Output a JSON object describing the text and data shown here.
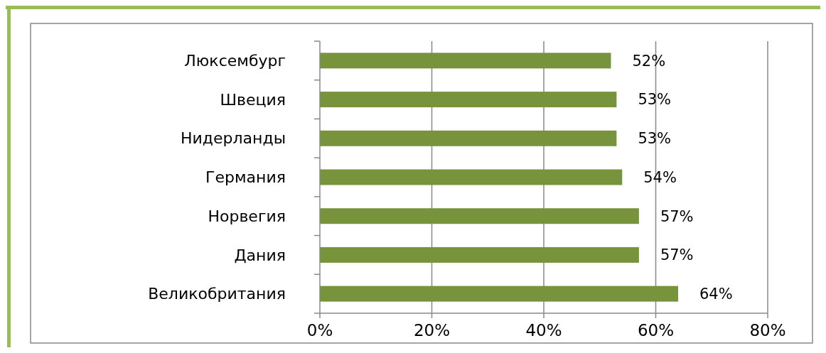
{
  "chart_data": {
    "type": "bar",
    "orientation": "horizontal",
    "categories": [
      "Люксембург",
      "Швеция",
      "Нидерланды",
      "Германия",
      "Норвегия",
      "Дания",
      "Великобритания"
    ],
    "values": [
      52,
      53,
      53,
      54,
      57,
      57,
      64
    ],
    "value_labels": [
      "52%",
      "53%",
      "53%",
      "54%",
      "57%",
      "57%",
      "64%"
    ],
    "color": "#77933c",
    "xlim": [
      0,
      80
    ],
    "xticks": [
      {
        "value": 0,
        "label": "0%"
      },
      {
        "value": 20,
        "label": "20%"
      },
      {
        "value": 40,
        "label": "40%"
      },
      {
        "value": 60,
        "label": "60%"
      },
      {
        "value": 80,
        "label": "80%"
      }
    ],
    "grid": "x"
  }
}
